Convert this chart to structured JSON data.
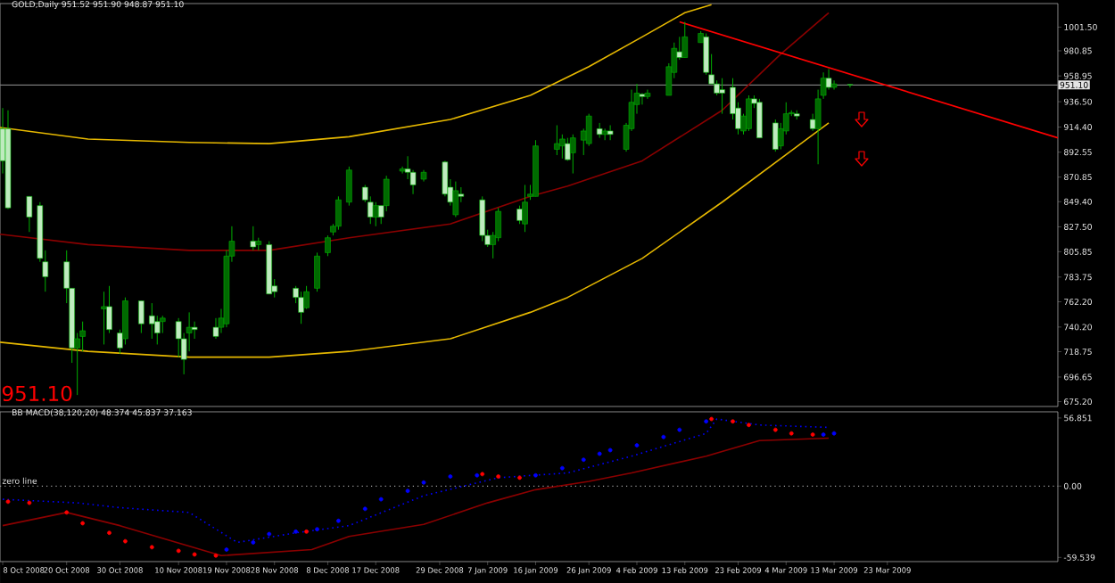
{
  "chart_data": [
    {
      "type": "candlestick",
      "title": "GOLD,Daily 951.52 951.90 948.87 951.10",
      "color": "#00b000",
      "x": [
        "2008-10-08",
        "2008-10-09",
        "2008-10-13",
        "2008-10-15",
        "2008-10-16",
        "2008-10-20",
        "2008-10-21",
        "2008-10-22",
        "2008-10-23",
        "2008-10-27",
        "2008-10-28",
        "2008-10-30",
        "2008-10-31",
        "2008-11-03",
        "2008-11-05",
        "2008-11-06",
        "2008-11-07",
        "2008-11-10",
        "2008-11-11",
        "2008-11-12",
        "2008-11-13",
        "2008-11-17",
        "2008-11-18",
        "2008-11-19",
        "2008-11-20",
        "2008-11-24",
        "2008-11-25",
        "2008-11-27",
        "2008-11-28",
        "2008-12-02",
        "2008-12-03",
        "2008-12-04",
        "2008-12-06",
        "2008-12-08",
        "2008-12-09",
        "2008-12-10",
        "2008-12-12",
        "2008-12-15",
        "2008-12-16",
        "2008-12-17",
        "2008-12-18",
        "2008-12-19",
        "2008-12-22",
        "2008-12-23",
        "2008-12-24",
        "2008-12-26",
        "2008-12-30",
        "2008-12-31",
        "2009-01-01",
        "2009-01-02",
        "2009-01-06",
        "2009-01-07",
        "2009-01-08",
        "2009-01-09",
        "2009-01-13",
        "2009-01-14",
        "2009-01-15",
        "2009-01-16",
        "2009-01-20",
        "2009-01-21",
        "2009-01-22",
        "2009-01-23",
        "2009-01-25",
        "2009-01-26",
        "2009-01-28",
        "2009-01-29",
        "2009-01-30",
        "2009-02-02",
        "2009-02-03",
        "2009-02-04",
        "2009-02-05",
        "2009-02-06",
        "2009-02-10",
        "2009-02-11",
        "2009-02-12",
        "2009-02-13",
        "2009-02-16",
        "2009-02-17",
        "2009-02-18",
        "2009-02-19",
        "2009-02-20",
        "2009-02-22",
        "2009-02-23",
        "2009-02-24",
        "2009-02-25",
        "2009-02-26",
        "2009-02-27",
        "2009-03-02",
        "2009-03-03",
        "2009-03-04",
        "2009-03-05",
        "2009-03-06",
        "2009-03-09",
        "2009-03-10",
        "2009-03-11",
        "2009-03-12",
        "2009-03-13",
        "2009-03-16"
      ],
      "ohlc": [
        [
          913,
          931,
          874,
          885
        ],
        [
          913,
          929,
          843,
          844
        ],
        [
          854,
          854,
          823,
          836
        ],
        [
          846,
          849,
          797,
          800
        ],
        [
          797,
          807,
          771,
          784
        ],
        [
          797,
          807,
          761,
          774
        ],
        [
          774,
          774,
          709,
          722
        ],
        [
          722,
          735,
          681,
          730
        ],
        [
          732,
          745,
          719,
          737
        ],
        [
          756,
          771,
          725,
          758
        ],
        [
          758,
          776,
          735,
          738
        ],
        [
          735,
          738,
          717,
          722
        ],
        [
          730,
          766,
          725,
          763
        ],
        [
          763,
          763,
          735,
          743
        ],
        [
          750,
          761,
          730,
          743
        ],
        [
          745,
          750,
          725,
          735
        ],
        [
          745,
          750,
          735,
          748
        ],
        [
          745,
          748,
          714,
          730
        ],
        [
          730,
          735,
          699,
          712
        ],
        [
          735,
          753,
          719,
          740
        ],
        [
          740,
          745,
          730,
          738
        ],
        [
          740,
          748,
          730,
          732
        ],
        [
          740,
          756,
          735,
          748
        ],
        [
          743,
          807,
          740,
          802
        ],
        [
          802,
          828,
          797,
          815
        ],
        [
          815,
          828,
          807,
          810
        ],
        [
          812,
          818,
          807,
          815
        ],
        [
          812,
          815,
          769,
          769
        ],
        [
          776,
          782,
          766,
          771
        ],
        [
          774,
          776,
          761,
          766
        ],
        [
          766,
          771,
          743,
          753
        ],
        [
          757,
          776,
          756,
          771
        ],
        [
          774,
          805,
          771,
          802
        ],
        [
          805,
          820,
          802,
          818
        ],
        [
          823,
          830,
          820,
          828
        ],
        [
          828,
          854,
          825,
          851
        ],
        [
          849,
          880,
          846,
          877
        ],
        [
          862,
          864,
          849,
          851
        ],
        [
          849,
          854,
          830,
          836
        ],
        [
          836,
          849,
          828,
          846
        ],
        [
          846,
          846,
          830,
          836
        ],
        [
          846,
          872,
          841,
          869
        ],
        [
          876,
          880,
          874,
          878
        ],
        [
          878,
          889,
          869,
          875
        ],
        [
          875,
          877,
          856,
          864
        ],
        [
          869,
          877,
          867,
          875
        ],
        [
          884,
          885,
          854,
          856
        ],
        [
          862,
          869,
          846,
          849
        ],
        [
          838,
          867,
          836,
          859
        ],
        [
          856,
          862,
          849,
          854
        ],
        [
          851,
          854,
          815,
          820
        ],
        [
          820,
          825,
          810,
          812
        ],
        [
          812,
          823,
          800,
          820
        ],
        [
          818,
          844,
          815,
          841
        ],
        [
          843,
          846,
          830,
          833
        ],
        [
          830,
          864,
          823,
          849
        ],
        [
          854,
          864,
          851,
          856
        ],
        [
          854,
          903,
          854,
          898
        ],
        [
          895,
          916,
          890,
          900
        ],
        [
          898,
          908,
          887,
          904
        ],
        [
          900,
          905,
          885,
          886
        ],
        [
          892,
          908,
          874,
          905
        ],
        [
          903,
          913,
          890,
          911
        ],
        [
          900,
          926,
          898,
          924
        ],
        [
          913,
          918,
          905,
          908
        ],
        [
          908,
          913,
          903,
          911
        ],
        [
          911,
          916,
          903,
          908
        ],
        [
          895,
          918,
          893,
          916
        ],
        [
          913,
          947,
          911,
          936
        ],
        [
          934,
          952,
          926,
          944
        ],
        [
          943,
          944,
          934,
          941
        ],
        [
          941,
          947,
          939,
          944
        ],
        [
          942,
          970,
          942,
          967
        ],
        [
          962,
          988,
          957,
          983
        ],
        [
          980,
          993,
          973,
          975
        ],
        [
          975,
          1006,
          975,
          993
        ],
        [
          988,
          998,
          988,
          996
        ],
        [
          993,
          996,
          960,
          962
        ],
        [
          960,
          978,
          952,
          952
        ],
        [
          952,
          955,
          942,
          944
        ],
        [
          947,
          957,
          926,
          944
        ],
        [
          949,
          957,
          921,
          926
        ],
        [
          931,
          936,
          908,
          913
        ],
        [
          911,
          926,
          908,
          924
        ],
        [
          913,
          942,
          911,
          939
        ],
        [
          939,
          942,
          931,
          935
        ],
        [
          936,
          939,
          905,
          905
        ],
        [
          918,
          921,
          893,
          895
        ],
        [
          898,
          918,
          895,
          913
        ],
        [
          911,
          936,
          908,
          926
        ],
        [
          926,
          929,
          924,
          927
        ],
        [
          926,
          929,
          921,
          924
        ],
        [
          921,
          926,
          911,
          913
        ],
        [
          913,
          947,
          882,
          939
        ],
        [
          942,
          962,
          939,
          957
        ],
        [
          957,
          965,
          947,
          949
        ],
        [
          949,
          955,
          947,
          952
        ],
        [
          951.52,
          951.9,
          948.87,
          951.1
        ]
      ],
      "series": [
        {
          "type": "line",
          "color": "#e6b800",
          "x": [
            "2008-10-07T12:00",
            "2008-10-24",
            "2008-11-12",
            "2008-11-27",
            "2008-12-12",
            "2008-12-31",
            "2009-01-15",
            "2009-01-26",
            "2009-02-05",
            "2009-02-13",
            "2009-02-18"
          ],
          "values": [
            914,
            904,
            901,
            900,
            906,
            921,
            942,
            967,
            993,
            1014,
            1021
          ]
        },
        {
          "type": "line",
          "color": "#e6b800",
          "x": [
            "2008-10-07T12:00",
            "2008-10-24",
            "2008-11-12",
            "2008-11-27",
            "2008-12-12",
            "2008-12-31",
            "2009-01-15",
            "2009-01-22",
            "2009-02-05",
            "2009-02-20",
            "2009-03-03",
            "2009-03-12"
          ],
          "values": [
            727,
            719,
            714,
            714,
            719,
            730,
            753,
            766,
            800,
            849,
            887,
            918
          ]
        },
        {
          "type": "line",
          "color": "#8b0000",
          "x": [
            "2008-10-07T12:00",
            "2008-10-24",
            "2008-11-12",
            "2008-11-27",
            "2008-12-12",
            "2008-12-31",
            "2009-01-15",
            "2009-01-22",
            "2009-02-05",
            "2009-02-20",
            "2009-03-03",
            "2009-03-12"
          ],
          "values": [
            821,
            812,
            807,
            807,
            818,
            830,
            854,
            863,
            885,
            929,
            978,
            1014
          ]
        },
        {
          "type": "line",
          "color": "#ff0000",
          "x": [
            "2009-02-12",
            "2009-04-24"
          ],
          "values": [
            1006,
            905
          ]
        }
      ],
      "xlim": [
        "2008-10-07T12:00",
        "2009-04-24"
      ],
      "ylim": [
        671,
        1022
      ],
      "tick_labels": "y",
      "yticks": [
        {
          "value": 1001.5,
          "label": "1001.50"
        },
        {
          "value": 980.85,
          "label": "980.85"
        },
        {
          "value": 958.95,
          "label": "958.95"
        },
        {
          "value": 936.5,
          "label": "936.50"
        },
        {
          "value": 914.4,
          "label": "914.40"
        },
        {
          "value": 892.55,
          "label": "892.55"
        },
        {
          "value": 870.85,
          "label": "870.85"
        },
        {
          "value": 849.4,
          "label": "849.40"
        },
        {
          "value": 827.5,
          "label": "827.50"
        },
        {
          "value": 805.85,
          "label": "805.85"
        },
        {
          "value": 783.75,
          "label": "783.75"
        },
        {
          "value": 762.2,
          "label": "762.20"
        },
        {
          "value": 740.2,
          "label": "740.20"
        },
        {
          "value": 718.75,
          "label": "718.75"
        },
        {
          "value": 696.65,
          "label": "696.65"
        },
        {
          "value": 675.2,
          "label": "675.20"
        }
      ],
      "ref_lines": [
        {
          "axis": "y",
          "value": 951.1,
          "label": "951.10",
          "color": "#808080"
        }
      ],
      "annotations": [
        "951.10"
      ]
    },
    {
      "type": "line",
      "title": "BB MACD(38,120,20) 48.374 45.837 37.163",
      "series": [
        {
          "type": "line",
          "color": "#0000ff",
          "line_style": "dotted",
          "x": [
            "2008-10-08",
            "2008-10-22",
            "2008-10-30",
            "2008-11-12",
            "2008-11-21",
            "2008-12-02",
            "2008-12-12",
            "2008-12-26",
            "2009-01-09",
            "2009-01-22",
            "2009-02-03",
            "2009-02-17",
            "2009-02-19",
            "2009-02-27",
            "2009-03-12"
          ],
          "values": [
            -11,
            -14,
            -18,
            -22,
            -47,
            -39,
            -33,
            -8,
            7,
            11,
            25,
            44,
            56,
            51,
            49
          ]
        },
        {
          "type": "line",
          "color": "#8b0000",
          "x": [
            "2008-10-08",
            "2008-10-20",
            "2008-10-30",
            "2008-11-18",
            "2008-12-05",
            "2008-12-12",
            "2008-12-26",
            "2009-01-07",
            "2009-01-16",
            "2009-01-26",
            "2009-02-03",
            "2009-02-17",
            "2009-02-27",
            "2009-03-12"
          ],
          "values": [
            -33,
            -22,
            -33,
            -58,
            -53,
            -42,
            -32,
            -14,
            -3,
            4,
            11,
            25,
            38,
            40
          ]
        },
        {
          "type": "scatter",
          "marker": "circle",
          "x": [
            "2008-10-09",
            "2008-10-13",
            "2008-10-20",
            "2008-10-23",
            "2008-10-28",
            "2008-10-31",
            "2008-11-05",
            "2008-11-10",
            "2008-11-13",
            "2008-11-17",
            "2008-11-19",
            "2008-11-24",
            "2008-11-27",
            "2008-12-02",
            "2008-12-04",
            "2008-12-06",
            "2008-12-10",
            "2008-12-15",
            "2008-12-18",
            "2008-12-23",
            "2008-12-26",
            "2008-12-31",
            "2009-01-05",
            "2009-01-06",
            "2009-01-09",
            "2009-01-13",
            "2009-01-16",
            "2009-01-21",
            "2009-01-25",
            "2009-01-28",
            "2009-01-30",
            "2009-02-04",
            "2009-02-09",
            "2009-02-12",
            "2009-02-17",
            "2009-02-18",
            "2009-02-22",
            "2009-02-25",
            "2009-03-02",
            "2009-03-05",
            "2009-03-09",
            "2009-03-11",
            "2009-03-13"
          ],
          "values": [
            -13,
            -14,
            -22,
            -31,
            -39,
            -46,
            -51,
            -54,
            -57,
            -58,
            -53,
            -47,
            -40,
            -38,
            -38,
            -36,
            -29,
            -19,
            -11,
            -4,
            3,
            8,
            9,
            10,
            8,
            7,
            9,
            15,
            22,
            27,
            30,
            34,
            41,
            47,
            54,
            56,
            54,
            51,
            47,
            44,
            43,
            43,
            44
          ],
          "colors": [
            "#ff0000",
            "#ff0000",
            "#ff0000",
            "#ff0000",
            "#ff0000",
            "#ff0000",
            "#ff0000",
            "#ff0000",
            "#ff0000",
            "#ff0000",
            "#0000ff",
            "#0000ff",
            "#0000ff",
            "#0000ff",
            "#ff0000",
            "#0000ff",
            "#0000ff",
            "#0000ff",
            "#0000ff",
            "#0000ff",
            "#0000ff",
            "#0000ff",
            "#0000ff",
            "#ff0000",
            "#ff0000",
            "#ff0000",
            "#0000ff",
            "#0000ff",
            "#0000ff",
            "#0000ff",
            "#0000ff",
            "#0000ff",
            "#0000ff",
            "#0000ff",
            "#0000ff",
            "#ff0000",
            "#ff0000",
            "#ff0000",
            "#ff0000",
            "#ff0000",
            "#ff0000",
            "#0000ff",
            "#0000ff"
          ]
        }
      ],
      "xlim": [
        "2008-10-07T12:00",
        "2009-04-24"
      ],
      "ylim": [
        -63,
        62
      ],
      "xticks": [
        {
          "value": "2008-10-08",
          "label": "8 Oct 2008"
        },
        {
          "value": "2008-10-20",
          "label": "20 Oct 2008"
        },
        {
          "value": "2008-10-30",
          "label": "30 Oct 2008"
        },
        {
          "value": "2008-11-10",
          "label": "10 Nov 2008"
        },
        {
          "value": "2008-11-19",
          "label": "19 Nov 2008"
        },
        {
          "value": "2008-11-28",
          "label": "28 Nov 2008"
        },
        {
          "value": "2008-12-08",
          "label": "8 Dec 2008"
        },
        {
          "value": "2008-12-17",
          "label": "17 Dec 2008"
        },
        {
          "value": "2008-12-29",
          "label": "29 Dec 2008"
        },
        {
          "value": "2009-01-07",
          "label": "7 Jan 2009"
        },
        {
          "value": "2009-01-16",
          "label": "16 Jan 2009"
        },
        {
          "value": "2009-01-26",
          "label": "26 Jan 2009"
        },
        {
          "value": "2009-02-04",
          "label": "4 Feb 2009"
        },
        {
          "value": "2009-02-13",
          "label": "13 Feb 2009"
        },
        {
          "value": "2009-02-23",
          "label": "23 Feb 2009"
        },
        {
          "value": "2009-03-04",
          "label": "4 Mar 2009"
        },
        {
          "value": "2009-03-13",
          "label": "13 Mar 2009"
        },
        {
          "value": "2009-03-23",
          "label": "23 Mar 2009"
        }
      ],
      "yticks": [
        56.851,
        {
          "value": 0,
          "label": "0.00"
        },
        -59.539
      ],
      "ref_lines": [
        {
          "axis": "y",
          "value": 0,
          "label": "zero line",
          "color": "#a0a0a0",
          "line_style": "dotted"
        }
      ]
    }
  ]
}
